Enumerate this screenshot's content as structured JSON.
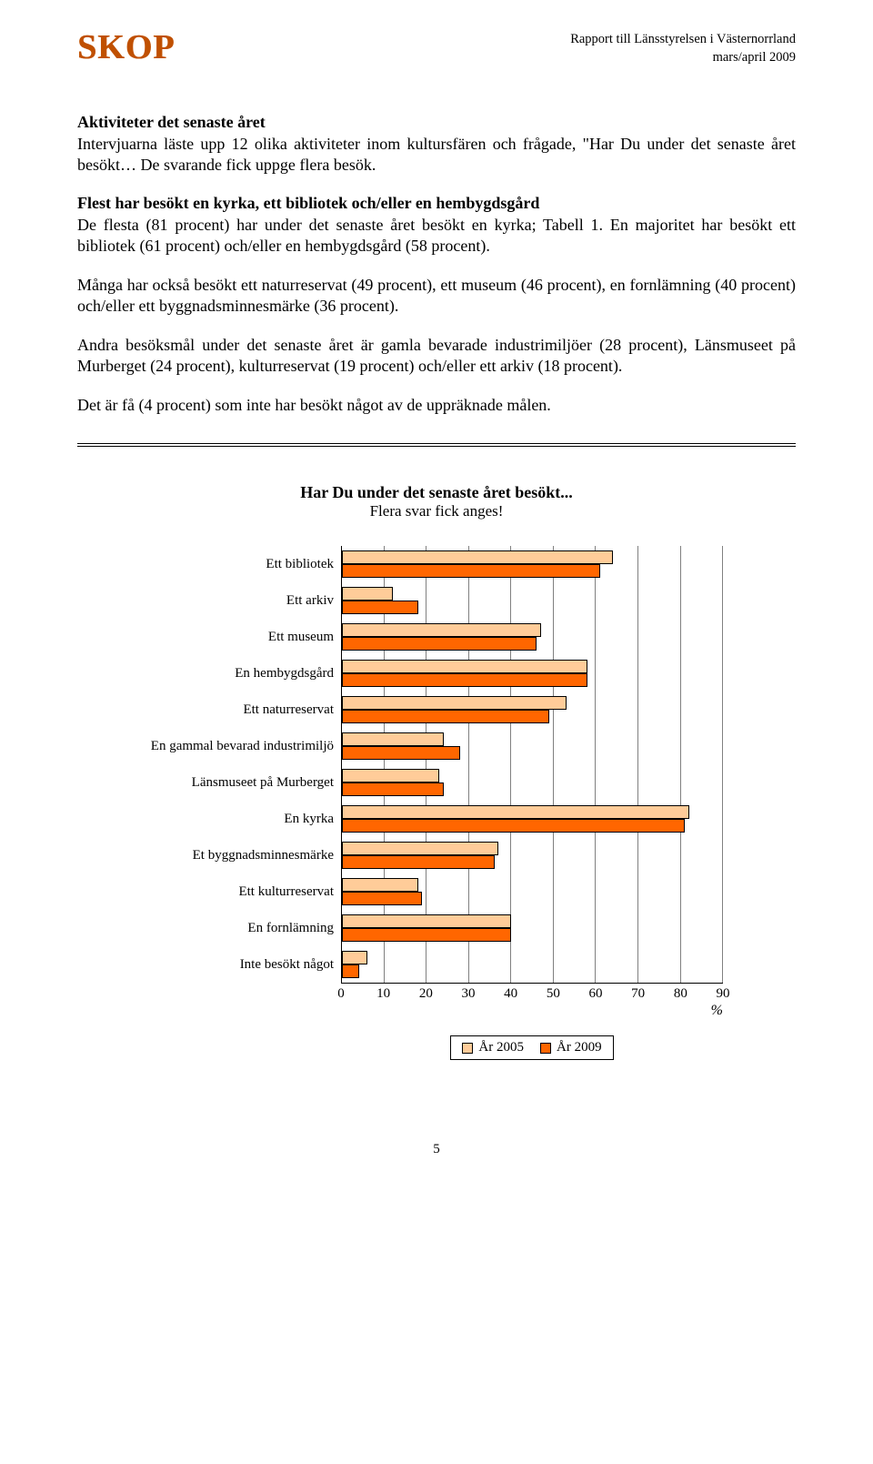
{
  "logo": "SKOP",
  "header": {
    "line1": "Rapport till Länsstyrelsen i Västernorrland",
    "line2": "mars/april 2009"
  },
  "section_title": "Aktiviteter det senaste året",
  "p1": "Intervjuarna läste upp 12 olika aktiviteter inom kultursfären och frågade, \"Har Du under det senaste året besökt… De svarande fick uppge flera besök.",
  "p2_title": "Flest har besökt en kyrka, ett bibliotek och/eller en hembygdsgård",
  "p2": "De flesta (81 procent) har under det senaste året besökt en kyrka; Tabell 1. En majoritet har besökt ett bibliotek (61 procent) och/eller en hembygdsgård (58 procent).",
  "p3": "Många har också besökt ett naturreservat (49 procent), ett museum (46 procent), en fornlämning (40 procent) och/eller ett byggnadsminnesmärke (36 procent).",
  "p4": "Andra besöksmål under det senaste året är gamla bevarade industrimiljöer (28 procent), Länsmuseet på Murberget (24 procent), kulturreservat (19 procent) och/eller ett arkiv (18 procent).",
  "p5": "Det är få (4 procent) som inte har besökt något av de uppräknade målen.",
  "chart": {
    "title": "Har Du under det senaste året besökt...",
    "subtitle": "Flera svar fick anges!",
    "x_max": 90,
    "x_ticks": [
      0,
      10,
      20,
      30,
      40,
      50,
      60,
      70,
      80,
      90
    ],
    "x_unit": "%",
    "grid_color": "#808080",
    "series_2005": {
      "label": "År 2005",
      "color": "#ffcc99"
    },
    "series_2009": {
      "label": "År 2009",
      "color": "#ff6600"
    },
    "categories": [
      {
        "label": "Ett bibliotek",
        "v2005": 64,
        "v2009": 61
      },
      {
        "label": "Ett arkiv",
        "v2005": 12,
        "v2009": 18
      },
      {
        "label": "Ett museum",
        "v2005": 47,
        "v2009": 46
      },
      {
        "label": "En hembygdsgård",
        "v2005": 58,
        "v2009": 58
      },
      {
        "label": "Ett naturreservat",
        "v2005": 53,
        "v2009": 49
      },
      {
        "label": "En gammal bevarad industrimiljö",
        "v2005": 24,
        "v2009": 28
      },
      {
        "label": "Länsmuseet på Murberget",
        "v2005": 23,
        "v2009": 24
      },
      {
        "label": "En kyrka",
        "v2005": 82,
        "v2009": 81
      },
      {
        "label": "Et byggnadsminnesmärke",
        "v2005": 37,
        "v2009": 36
      },
      {
        "label": "Ett kulturreservat",
        "v2005": 18,
        "v2009": 19
      },
      {
        "label": "En fornlämning",
        "v2005": 40,
        "v2009": 40
      },
      {
        "label": "Inte besökt något",
        "v2005": 6,
        "v2009": 4
      }
    ]
  },
  "page_number": "5"
}
